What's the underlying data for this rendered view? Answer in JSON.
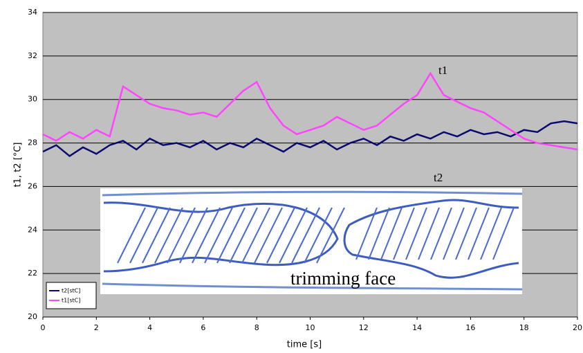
{
  "chart_data": {
    "type": "line",
    "x": [
      0,
      0.5,
      1,
      1.5,
      2,
      2.5,
      3,
      3.5,
      4,
      4.5,
      5,
      5.5,
      6,
      6.5,
      7,
      7.5,
      8,
      8.5,
      9,
      9.5,
      10,
      10.5,
      11,
      11.5,
      12,
      12.5,
      13,
      13.5,
      14,
      14.5,
      15,
      15.5,
      16,
      16.5,
      17,
      17.5,
      18,
      18.5,
      19,
      19.5,
      20
    ],
    "series": [
      {
        "name": "t2[stC]",
        "color": "#0a0a6e",
        "values": [
          27.6,
          27.9,
          27.4,
          27.8,
          27.5,
          27.9,
          28.1,
          27.7,
          28.2,
          27.9,
          28.0,
          27.8,
          28.1,
          27.7,
          28.0,
          27.8,
          28.2,
          27.9,
          27.6,
          28.0,
          27.8,
          28.1,
          27.7,
          28.0,
          28.2,
          27.9,
          28.3,
          28.1,
          28.4,
          28.2,
          28.5,
          28.3,
          28.6,
          28.4,
          28.5,
          28.3,
          28.6,
          28.5,
          28.9,
          29.0,
          28.9
        ]
      },
      {
        "name": "t1[stC]",
        "color": "#ff44ff",
        "values": [
          28.4,
          28.1,
          28.5,
          28.2,
          28.6,
          28.3,
          30.6,
          30.2,
          29.8,
          29.6,
          29.5,
          29.3,
          29.4,
          29.2,
          29.8,
          30.4,
          30.8,
          29.6,
          28.8,
          28.4,
          28.6,
          28.8,
          29.2,
          28.9,
          28.6,
          28.8,
          29.3,
          29.8,
          30.2,
          31.2,
          30.2,
          29.9,
          29.6,
          29.4,
          29.0,
          28.6,
          28.2,
          28.0,
          27.9,
          27.8,
          27.7
        ]
      }
    ],
    "xlabel": "time [s]",
    "ylabel": "t1, t2 [°C]",
    "xlim": [
      0,
      20
    ],
    "xticks": [
      0,
      2,
      4,
      6,
      8,
      10,
      12,
      14,
      16,
      18,
      20
    ],
    "ylim": [
      20,
      34
    ],
    "yticks": [
      20,
      22,
      24,
      26,
      28,
      30,
      32,
      34
    ],
    "grid": true,
    "legend": "lower left",
    "annotations": [
      "t1",
      "t2"
    ],
    "inset_caption": "trimming face"
  }
}
